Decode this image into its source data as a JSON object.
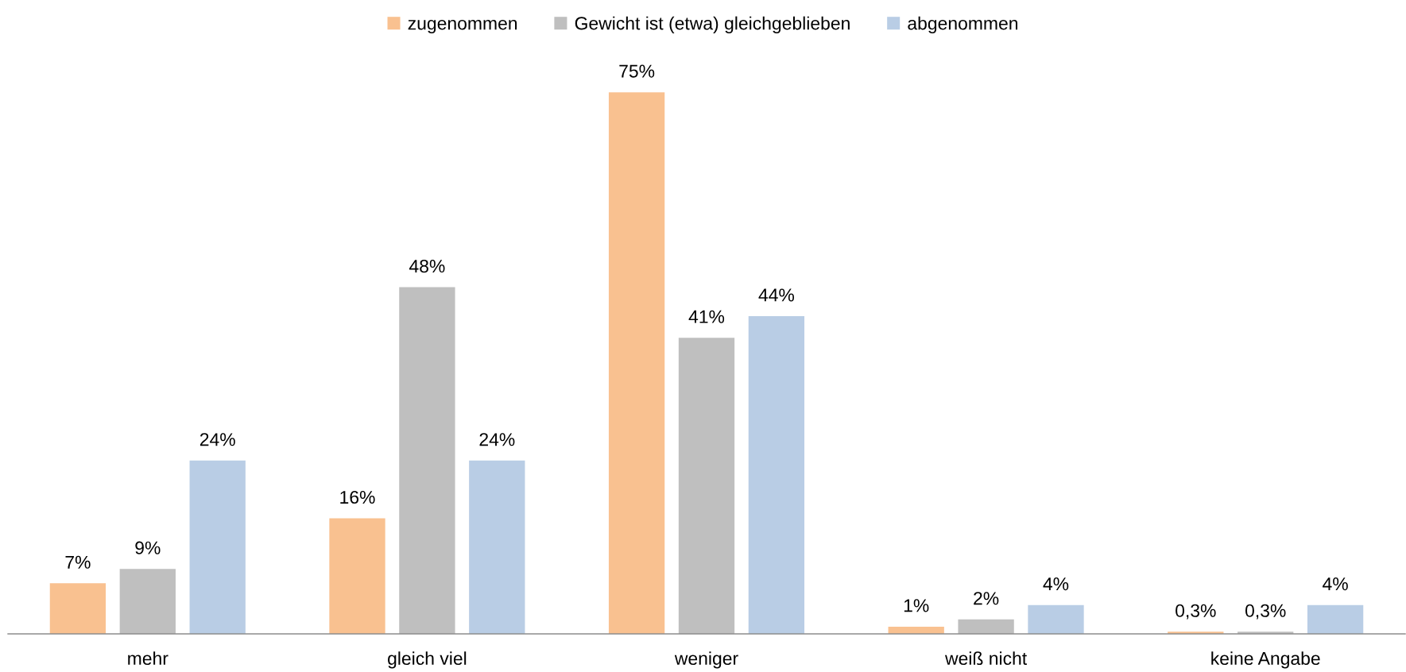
{
  "chart_data": {
    "type": "bar",
    "categories": [
      "mehr",
      "gleich viel",
      "weniger",
      "weiß nicht",
      "keine Angabe"
    ],
    "series": [
      {
        "name": "zugenommen",
        "color": "#f9c190",
        "values": [
          7,
          16,
          75,
          1,
          0.3
        ],
        "value_labels": [
          "7%",
          "16%",
          "75%",
          "1%",
          "0,3%"
        ]
      },
      {
        "name": "Gewicht ist (etwa) gleichgeblieben",
        "color": "#bfbfbf",
        "values": [
          9,
          48,
          41,
          2,
          0.3
        ],
        "value_labels": [
          "9%",
          "48%",
          "41%",
          "2%",
          "0,3%"
        ]
      },
      {
        "name": "abgenommen",
        "color": "#b9cde5",
        "values": [
          24,
          24,
          44,
          4,
          4
        ],
        "value_labels": [
          "24%",
          "24%",
          "44%",
          "4%",
          "4%"
        ]
      }
    ],
    "legend": "top",
    "grid": false
  }
}
